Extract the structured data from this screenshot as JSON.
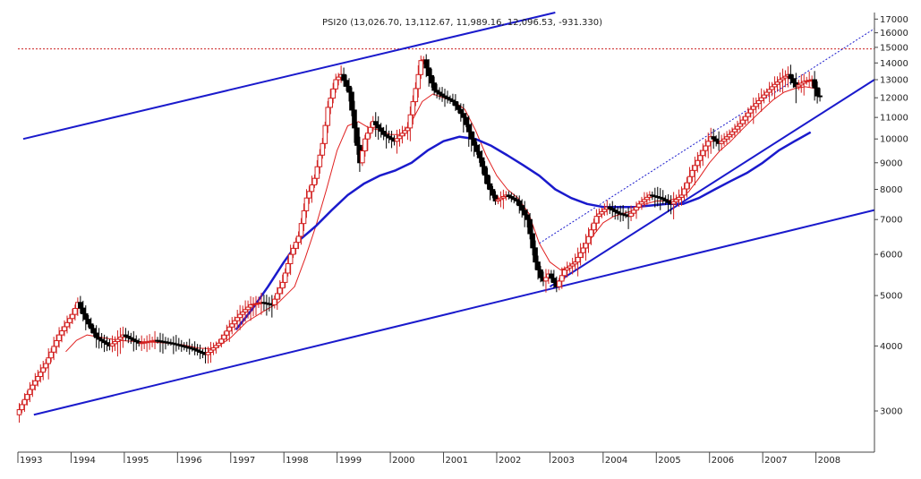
{
  "chart_data": {
    "type": "candlestick",
    "title": "PSI20 (13,026.70, 13,112.67, 11,989.16, 12,096.53, -931.330)",
    "y_scale": "log",
    "ylim": [
      2500,
      17500
    ],
    "y_ticks": [
      {
        "value": 3000,
        "label": "3000"
      },
      {
        "value": 4000,
        "label": "4000"
      },
      {
        "value": 5000,
        "label": "5000"
      },
      {
        "value": 6000,
        "label": "6000"
      },
      {
        "value": 7000,
        "label": "7000"
      },
      {
        "value": 8000,
        "label": "8000"
      },
      {
        "value": 9000,
        "label": "9000"
      },
      {
        "value": 10000,
        "label": "10000"
      },
      {
        "value": 11000,
        "label": "11000"
      },
      {
        "value": 12000,
        "label": "12000"
      },
      {
        "value": 13000,
        "label": "13000"
      },
      {
        "value": 14000,
        "label": "14000"
      },
      {
        "value": 15000,
        "label": "15000"
      },
      {
        "value": 16000,
        "label": "16000"
      },
      {
        "value": 17000,
        "label": "17000"
      }
    ],
    "x_ticks": [
      {
        "value": 1993.0,
        "label": "1993"
      },
      {
        "value": 1994.0,
        "label": "1994"
      },
      {
        "value": 1995.0,
        "label": "1995"
      },
      {
        "value": 1996.0,
        "label": "1996"
      },
      {
        "value": 1997.0,
        "label": "1997"
      },
      {
        "value": 1998.0,
        "label": "1998"
      },
      {
        "value": 1999.0,
        "label": "1999"
      },
      {
        "value": 2000.0,
        "label": "2000"
      },
      {
        "value": 2001.0,
        "label": "2001"
      },
      {
        "value": 2002.0,
        "label": "2002"
      },
      {
        "value": 2003.0,
        "label": "2003"
      },
      {
        "value": 2004.0,
        "label": "2004"
      },
      {
        "value": 2005.0,
        "label": "2005"
      },
      {
        "value": 2006.0,
        "label": "2006"
      },
      {
        "value": 2007.0,
        "label": "2007"
      },
      {
        "value": 2008.0,
        "label": "2008"
      }
    ],
    "price_path": [
      [
        1993.0,
        2950
      ],
      [
        1993.25,
        3300
      ],
      [
        1993.55,
        3700
      ],
      [
        1993.8,
        4200
      ],
      [
        1994.05,
        4600
      ],
      [
        1994.15,
        4850
      ],
      [
        1994.3,
        4500
      ],
      [
        1994.5,
        4150
      ],
      [
        1994.75,
        4000
      ],
      [
        1995.0,
        4200
      ],
      [
        1995.3,
        4050
      ],
      [
        1995.6,
        4100
      ],
      [
        1995.9,
        4050
      ],
      [
        1996.1,
        4000
      ],
      [
        1996.3,
        3950
      ],
      [
        1996.55,
        3850
      ],
      [
        1996.8,
        4050
      ],
      [
        1997.0,
        4350
      ],
      [
        1997.2,
        4600
      ],
      [
        1997.4,
        4800
      ],
      [
        1997.6,
        4850
      ],
      [
        1997.8,
        4800
      ],
      [
        1998.0,
        5300
      ],
      [
        1998.15,
        6000
      ],
      [
        1998.3,
        6500
      ],
      [
        1998.45,
        7700
      ],
      [
        1998.6,
        8400
      ],
      [
        1998.75,
        9800
      ],
      [
        1998.85,
        11500
      ],
      [
        1999.0,
        13000
      ],
      [
        1999.1,
        13300
      ],
      [
        1999.25,
        12300
      ],
      [
        1999.35,
        10500
      ],
      [
        1999.45,
        9000
      ],
      [
        1999.55,
        10000
      ],
      [
        1999.7,
        10800
      ],
      [
        1999.9,
        10200
      ],
      [
        2000.1,
        9900
      ],
      [
        2000.35,
        10500
      ],
      [
        2000.5,
        12500
      ],
      [
        2000.62,
        14500
      ],
      [
        2000.72,
        13500
      ],
      [
        2000.85,
        12400
      ],
      [
        2001.0,
        12100
      ],
      [
        2001.2,
        11800
      ],
      [
        2001.4,
        11000
      ],
      [
        2001.55,
        10000
      ],
      [
        2001.7,
        9200
      ],
      [
        2001.85,
        8200
      ],
      [
        2002.0,
        7600
      ],
      [
        2002.2,
        7800
      ],
      [
        2002.4,
        7600
      ],
      [
        2002.6,
        7000
      ],
      [
        2002.75,
        5800
      ],
      [
        2002.88,
        5300
      ],
      [
        2003.0,
        5500
      ],
      [
        2003.15,
        5200
      ],
      [
        2003.3,
        5600
      ],
      [
        2003.5,
        5800
      ],
      [
        2003.7,
        6300
      ],
      [
        2003.9,
        7100
      ],
      [
        2004.1,
        7400
      ],
      [
        2004.3,
        7200
      ],
      [
        2004.5,
        7100
      ],
      [
        2004.7,
        7500
      ],
      [
        2004.9,
        7800
      ],
      [
        2005.1,
        7700
      ],
      [
        2005.3,
        7500
      ],
      [
        2005.5,
        7800
      ],
      [
        2005.7,
        8700
      ],
      [
        2005.9,
        9500
      ],
      [
        2006.05,
        10100
      ],
      [
        2006.2,
        9800
      ],
      [
        2006.4,
        10200
      ],
      [
        2006.6,
        10700
      ],
      [
        2006.8,
        11400
      ],
      [
        2007.0,
        12000
      ],
      [
        2007.2,
        12600
      ],
      [
        2007.35,
        13000
      ],
      [
        2007.5,
        13300
      ],
      [
        2007.65,
        12600
      ],
      [
        2007.8,
        12900
      ],
      [
        2007.95,
        13000
      ],
      [
        2008.05,
        12100
      ]
    ],
    "series": [
      {
        "kind": "moving-average",
        "color": "#e02020",
        "points": [
          [
            1993.9,
            3900
          ],
          [
            1994.1,
            4100
          ],
          [
            1994.3,
            4200
          ],
          [
            1994.6,
            4150
          ],
          [
            1994.9,
            4100
          ],
          [
            1995.2,
            4080
          ],
          [
            1995.5,
            4070
          ],
          [
            1995.8,
            4050
          ],
          [
            1996.1,
            4020
          ],
          [
            1996.4,
            3960
          ],
          [
            1996.7,
            3950
          ],
          [
            1997.0,
            4150
          ],
          [
            1997.3,
            4450
          ],
          [
            1997.6,
            4650
          ],
          [
            1997.9,
            4850
          ],
          [
            1998.2,
            5200
          ],
          [
            1998.4,
            5900
          ],
          [
            1998.6,
            6800
          ],
          [
            1998.8,
            8000
          ],
          [
            1999.0,
            9500
          ],
          [
            1999.2,
            10600
          ],
          [
            1999.4,
            10800
          ],
          [
            1999.6,
            10500
          ],
          [
            1999.8,
            10400
          ],
          [
            2000.0,
            10200
          ],
          [
            2000.2,
            10200
          ],
          [
            2000.4,
            10800
          ],
          [
            2000.6,
            11800
          ],
          [
            2000.8,
            12200
          ],
          [
            2001.0,
            12000
          ],
          [
            2001.2,
            11800
          ],
          [
            2001.4,
            11400
          ],
          [
            2001.6,
            10400
          ],
          [
            2001.8,
            9300
          ],
          [
            2002.0,
            8500
          ],
          [
            2002.2,
            8000
          ],
          [
            2002.4,
            7700
          ],
          [
            2002.6,
            7200
          ],
          [
            2002.8,
            6300
          ],
          [
            2003.0,
            5800
          ],
          [
            2003.2,
            5600
          ],
          [
            2003.4,
            5700
          ],
          [
            2003.6,
            6000
          ],
          [
            2003.8,
            6500
          ],
          [
            2004.0,
            6900
          ],
          [
            2004.2,
            7100
          ],
          [
            2004.4,
            7200
          ],
          [
            2004.6,
            7300
          ],
          [
            2004.8,
            7500
          ],
          [
            2005.0,
            7600
          ],
          [
            2005.2,
            7600
          ],
          [
            2005.4,
            7700
          ],
          [
            2005.6,
            7900
          ],
          [
            2005.8,
            8400
          ],
          [
            2006.0,
            9000
          ],
          [
            2006.2,
            9500
          ],
          [
            2006.4,
            9900
          ],
          [
            2006.6,
            10400
          ],
          [
            2006.8,
            10900
          ],
          [
            2007.0,
            11400
          ],
          [
            2007.2,
            11900
          ],
          [
            2007.4,
            12300
          ],
          [
            2007.6,
            12500
          ],
          [
            2007.8,
            12600
          ],
          [
            2008.0,
            12500
          ]
        ]
      },
      {
        "kind": "moving-average",
        "color": "#1a1acc",
        "points": [
          [
            1997.1,
            4300
          ],
          [
            1997.4,
            4700
          ],
          [
            1997.7,
            5200
          ],
          [
            1998.0,
            5800
          ],
          [
            1998.3,
            6400
          ],
          [
            1998.6,
            6800
          ],
          [
            1998.9,
            7300
          ],
          [
            1999.2,
            7800
          ],
          [
            1999.5,
            8200
          ],
          [
            1999.8,
            8500
          ],
          [
            2000.1,
            8700
          ],
          [
            2000.4,
            9000
          ],
          [
            2000.7,
            9500
          ],
          [
            2001.0,
            9900
          ],
          [
            2001.3,
            10100
          ],
          [
            2001.6,
            10000
          ],
          [
            2001.9,
            9700
          ],
          [
            2002.2,
            9300
          ],
          [
            2002.5,
            8900
          ],
          [
            2002.8,
            8500
          ],
          [
            2003.1,
            8000
          ],
          [
            2003.4,
            7700
          ],
          [
            2003.7,
            7500
          ],
          [
            2004.0,
            7400
          ],
          [
            2004.3,
            7400
          ],
          [
            2004.6,
            7400
          ],
          [
            2004.9,
            7450
          ],
          [
            2005.2,
            7500
          ],
          [
            2005.5,
            7500
          ],
          [
            2005.8,
            7700
          ],
          [
            2006.1,
            8000
          ],
          [
            2006.4,
            8300
          ],
          [
            2006.7,
            8600
          ],
          [
            2007.0,
            9000
          ],
          [
            2007.3,
            9500
          ],
          [
            2007.6,
            9900
          ],
          [
            2007.9,
            10300
          ]
        ]
      }
    ],
    "trendlines": [
      {
        "kind": "solid",
        "points": [
          [
            1993.1,
            10000
          ],
          [
            2003.1,
            17500
          ]
        ]
      },
      {
        "kind": "solid",
        "points": [
          [
            1993.3,
            2950
          ],
          [
            2009.1,
            7300
          ]
        ]
      },
      {
        "kind": "solid",
        "points": [
          [
            2003.0,
            5200
          ],
          [
            2009.1,
            13000
          ]
        ]
      },
      {
        "kind": "dotted",
        "points": [
          [
            2002.8,
            6300
          ],
          [
            2009.1,
            16300
          ]
        ]
      }
    ],
    "reference_line": {
      "value": 14900,
      "style": "dotted",
      "color": "#cc2222"
    },
    "grid": false
  }
}
